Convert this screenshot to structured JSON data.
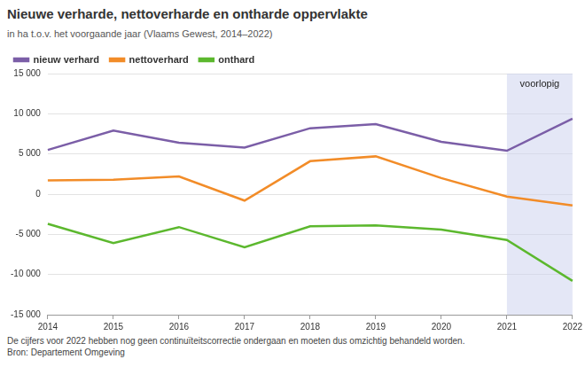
{
  "chart_data": {
    "type": "line",
    "title": "Nieuwe verharde, nettoverharde en ontharde oppervlakte",
    "subtitle": "in ha t.o.v. het voorgaande jaar (Vlaams Gewest, 2014–2022)",
    "categories": [
      "2014",
      "2015",
      "2016",
      "2017",
      "2018",
      "2019",
      "2020",
      "2021",
      "2022"
    ],
    "series": [
      {
        "name": "nieuw verhard",
        "color": "#7b5ea7",
        "values": [
          5500,
          7900,
          6400,
          5800,
          8200,
          8700,
          6500,
          5400,
          9400
        ]
      },
      {
        "name": "nettoverhard",
        "color": "#f28c28",
        "values": [
          1700,
          1800,
          2200,
          -800,
          4100,
          4700,
          2000,
          -300,
          -1400
        ]
      },
      {
        "name": "onthard",
        "color": "#5cb82e",
        "values": [
          -3700,
          -6100,
          -4100,
          -6600,
          -4000,
          -3900,
          -4400,
          -5700,
          -10800
        ]
      }
    ],
    "ylim": [
      -15000,
      15000
    ],
    "yticks": [
      {
        "value": -15000,
        "label": "-15 000"
      },
      {
        "value": -10000,
        "label": "-10 000"
      },
      {
        "value": -5000,
        "label": "-5 000"
      },
      0,
      {
        "value": 5000,
        "label": "5 000"
      },
      {
        "value": 10000,
        "label": "10 000"
      },
      {
        "value": 15000,
        "label": "15 000"
      }
    ],
    "grid": true,
    "legend": "top-left",
    "annotations": [
      {
        "text": "voorlopig",
        "x_start": "2021",
        "x_end": "2022"
      }
    ],
    "note": "De cijfers voor 2022 hebben nog geen continuïteitscorrectie ondergaan en moeten dus omzichtig behandeld worden.",
    "source": "Bron: Departement Omgeving"
  }
}
